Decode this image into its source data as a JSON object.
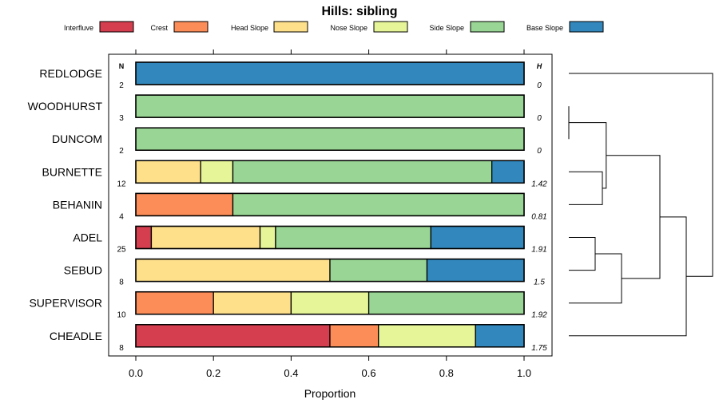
{
  "chart_data": {
    "type": "bar",
    "stacked": true,
    "orientation": "horizontal",
    "title": "Hills: sibling",
    "xlabel": "Proportion",
    "ylabel": "",
    "xlim": [
      0,
      1
    ],
    "xticks": [
      "0.0",
      "0.2",
      "0.4",
      "0.6",
      "0.8",
      "1.0"
    ],
    "n_header": "N",
    "h_header": "H",
    "legend_position": "top",
    "series": [
      {
        "name": "Interfluve",
        "color": "#d53e4f"
      },
      {
        "name": "Crest",
        "color": "#fc8d59"
      },
      {
        "name": "Head Slope",
        "color": "#fee08b"
      },
      {
        "name": "Nose Slope",
        "color": "#e6f598"
      },
      {
        "name": "Side Slope",
        "color": "#99d594"
      },
      {
        "name": "Base Slope",
        "color": "#3288bd"
      }
    ],
    "categories": [
      "REDLODGE",
      "WOODHURST",
      "DUNCOM",
      "BURNETTE",
      "BEHANIN",
      "ADEL",
      "SEBUD",
      "SUPERVISOR",
      "CHEADLE"
    ],
    "n": [
      "2",
      "3",
      "2",
      "12",
      "4",
      "25",
      "8",
      "10",
      "8"
    ],
    "h": [
      "0",
      "0",
      "0",
      "1.42",
      "0.81",
      "1.91",
      "1.5",
      "1.92",
      "1.75"
    ],
    "values": [
      [
        0,
        0,
        0,
        0,
        0,
        1.0
      ],
      [
        0,
        0,
        0,
        0,
        1.0,
        0
      ],
      [
        0,
        0,
        0,
        0,
        1.0,
        0
      ],
      [
        0,
        0,
        0.167,
        0.083,
        0.667,
        0.083
      ],
      [
        0,
        0.25,
        0,
        0,
        0.75,
        0
      ],
      [
        0.04,
        0,
        0.28,
        0.04,
        0.4,
        0.24
      ],
      [
        0,
        0,
        0.5,
        0,
        0.25,
        0.25
      ],
      [
        0,
        0.2,
        0.2,
        0.2,
        0.4,
        0
      ],
      [
        0.5,
        0.125,
        0,
        0.25,
        0,
        0.125
      ]
    ],
    "dendrogram": {
      "leaves": [
        "REDLODGE",
        "WOODHURST",
        "DUNCOM",
        "BURNETTE",
        "BEHANIN",
        "ADEL",
        "SEBUD",
        "SUPERVISOR",
        "CHEADLE"
      ],
      "merges": [
        {
          "a": "WOODHURST",
          "b": "DUNCOM",
          "height": 0
        },
        {
          "a": "BURNETTE",
          "b": "BEHANIN",
          "height": 0.7
        },
        {
          "a": "m0",
          "b": "m1",
          "height": 0.78
        },
        {
          "a": "ADEL",
          "b": "SEBUD",
          "height": 0.55
        },
        {
          "a": "m3",
          "b": "SUPERVISOR",
          "height": 1.1
        },
        {
          "a": "m2",
          "b": "m4",
          "height": 1.9
        },
        {
          "a": "m5",
          "b": "CHEADLE",
          "height": 2.45
        },
        {
          "a": "REDLODGE",
          "b": "m6",
          "height": 3.0
        }
      ]
    }
  }
}
